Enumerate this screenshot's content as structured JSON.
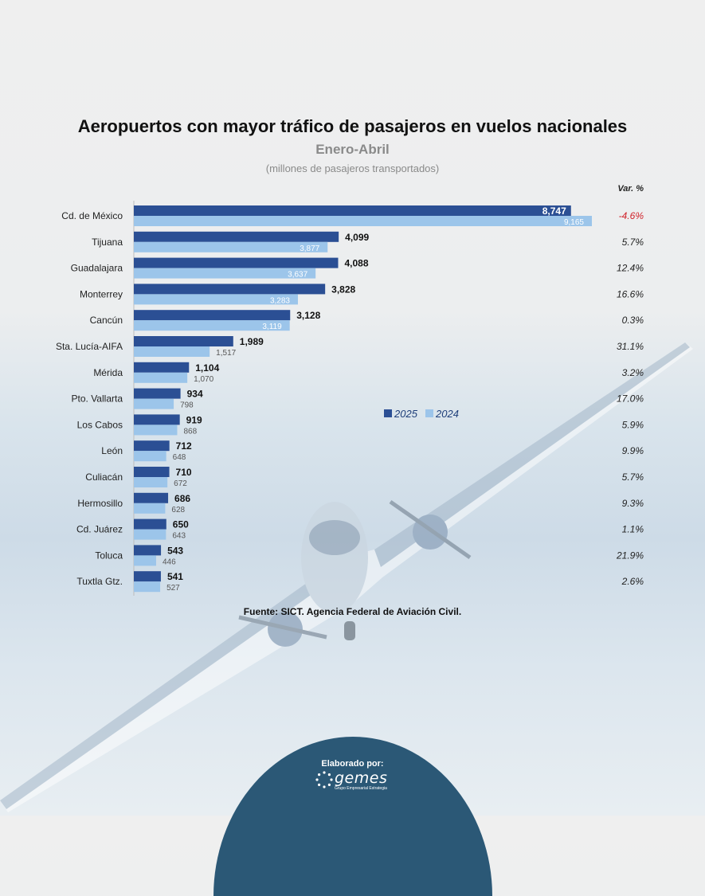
{
  "chart_data": {
    "type": "bar",
    "orientation": "horizontal",
    "title": "Aeropuertos con mayor tráfico de pasajeros en vuelos nacionales",
    "subtitle": "Enero-Abril",
    "units": "(millones de pasajeros transportados)",
    "variation_header": "Var. %",
    "categories": [
      "Cd. de México",
      "Tijuana",
      "Guadalajara",
      "Monterrey",
      "Cancún",
      "Sta. Lucía-AIFA",
      "Mérida",
      "Pto. Vallarta",
      "Los Cabos",
      "León",
      "Culiacán",
      "Hermosillo",
      "Cd. Juárez",
      "Toluca",
      "Tuxtla Gtz."
    ],
    "series": [
      {
        "name": "2025",
        "color": "#2b4f94",
        "values": [
          8747,
          4099,
          4088,
          3828,
          3128,
          1989,
          1104,
          934,
          919,
          712,
          710,
          686,
          650,
          543,
          541
        ],
        "labels": [
          "8,747",
          "4,099",
          "4,088",
          "3,828",
          "3,128",
          "1,989",
          "1,104",
          "934",
          "919",
          "712",
          "710",
          "686",
          "650",
          "543",
          "541"
        ]
      },
      {
        "name": "2024",
        "color": "#9cc5ea",
        "values": [
          9165,
          3877,
          3637,
          3283,
          3119,
          1517,
          1070,
          798,
          868,
          648,
          672,
          628,
          643,
          446,
          527
        ],
        "labels": [
          "9,165",
          "3,877",
          "3,637",
          "3,283",
          "3,119",
          "1,517",
          "1,070",
          "798",
          "868",
          "648",
          "672",
          "628",
          "643",
          "446",
          "527"
        ]
      }
    ],
    "variation": [
      "-4.6%",
      "5.7%",
      "12.4%",
      "16.6%",
      "0.3%",
      "31.1%",
      "3.2%",
      "17.0%",
      "5.9%",
      "9.9%",
      "5.7%",
      "9.3%",
      "1.1%",
      "21.9%",
      "2.6%"
    ],
    "variation_colors": {
      "negative": "#d0222a",
      "positive": "#222222"
    },
    "legend_position": "center-right",
    "source": "Fuente: SICT. Agencia Federal de Aviación Civil."
  },
  "footer": {
    "label": "Elaborado por:",
    "logo_text": "gemes",
    "logo_tagline": "Grupo Empresarial Estrategia"
  }
}
